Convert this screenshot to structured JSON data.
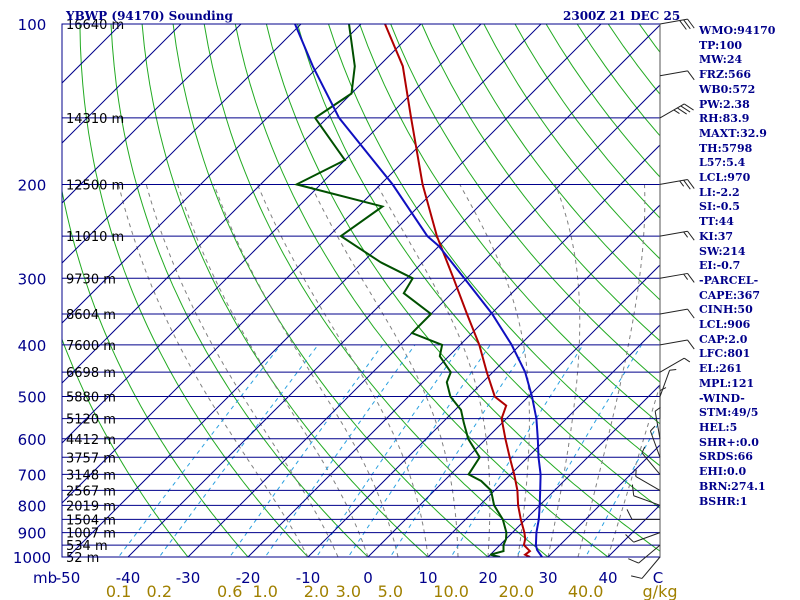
{
  "title_left": "YBWP (94170) Sounding",
  "title_right": "2300Z 21 DEC 25",
  "stats": [
    "WMO:94170",
    "TP:100",
    "MW:24",
    "FRZ:566",
    "WB0:572",
    "PW:2.38",
    "RH:83.9",
    "MAXT:32.9",
    "TH:5798",
    "L57:5.4",
    "LCL:970",
    "LI:-2.2",
    "SI:-0.5",
    "TT:44",
    "KI:37",
    "SW:214",
    "EI:-0.7",
    "-PARCEL-",
    "CAPE:367",
    "CINH:50",
    "LCL:906",
    "CAP:2.0",
    "LFC:801",
    "EL:261",
    "MPL:121",
    "-WIND-",
    "STM:49/5",
    "HEL:5",
    "SHR+:0.0",
    "SRDS:66",
    "EHI:0.0",
    "BRN:274.1",
    "BSHR:1"
  ],
  "colors": {
    "isobar": "#00008b",
    "isotherm": "#00008b",
    "dry_adiabat": "#22aa22",
    "moist_adiabat": "#808080",
    "mixing_ratio": "#2aa0e0",
    "temperature": "#b00000",
    "dewpoint": "#005000",
    "parcel": "#1010c0",
    "ticks": "#555555"
  },
  "chart_data": {
    "type": "skew-t",
    "title": "YBWP (94170) Sounding",
    "ylabel": "mb",
    "xlabel": "C",
    "ylim": [
      1000,
      100
    ],
    "xlim": [
      -50,
      50
    ],
    "pressure_levels": [
      {
        "p": 100,
        "label": "100",
        "height": "16640 m"
      },
      {
        "p": 150,
        "label": "",
        "height": "14310 m"
      },
      {
        "p": 200,
        "label": "200",
        "height": "12500 m"
      },
      {
        "p": 250,
        "label": "",
        "height": "11010 m"
      },
      {
        "p": 300,
        "label": "300",
        "height": "9730 m"
      },
      {
        "p": 350,
        "label": "",
        "height": "8604 m"
      },
      {
        "p": 400,
        "label": "400",
        "height": "7600 m"
      },
      {
        "p": 450,
        "label": "",
        "height": "6698 m"
      },
      {
        "p": 500,
        "label": "500",
        "height": "5880 m"
      },
      {
        "p": 550,
        "label": "",
        "height": "5120 m"
      },
      {
        "p": 600,
        "label": "600",
        "height": "4412 m"
      },
      {
        "p": 650,
        "label": "",
        "height": "3757 m"
      },
      {
        "p": 700,
        "label": "700",
        "height": "3148 m"
      },
      {
        "p": 750,
        "label": "",
        "height": "2567 m"
      },
      {
        "p": 800,
        "label": "800",
        "height": "2019 m"
      },
      {
        "p": 850,
        "label": "",
        "height": "1504 m"
      },
      {
        "p": 900,
        "label": "900",
        "height": "1007 m"
      },
      {
        "p": 950,
        "label": "",
        "height": "534 m"
      },
      {
        "p": 1000,
        "label": "1000",
        "height": "52 m"
      }
    ],
    "temperature_ticks": [
      "-50",
      "-40",
      "-30",
      "-20",
      "-10",
      "0",
      "10",
      "20",
      "30",
      "40"
    ],
    "unit_label": "mb",
    "unit_label_c": "C",
    "mixing_ratio_labels": [
      {
        "w": 0.1,
        "label": "0.1"
      },
      {
        "w": 0.2,
        "label": "0.2"
      },
      {
        "w": 0.6,
        "label": "0.6"
      },
      {
        "w": 1.0,
        "label": "1.0"
      },
      {
        "w": 2.0,
        "label": "2.0"
      },
      {
        "w": 3.0,
        "label": "3.0"
      },
      {
        "w": 5.0,
        "label": "5.0"
      },
      {
        "w": 10.0,
        "label": "10.0"
      },
      {
        "w": 20.0,
        "label": "20.0"
      },
      {
        "w": 40.0,
        "label": "40.0"
      }
    ],
    "mixing_unit": "g/kg",
    "series": [
      {
        "name": "temperature",
        "points": [
          {
            "p": 1000,
            "t": 27.0
          },
          {
            "p": 990,
            "t": 25.8
          },
          {
            "p": 975,
            "t": 26.0
          },
          {
            "p": 950,
            "t": 24.0
          },
          {
            "p": 925,
            "t": 23.2
          },
          {
            "p": 900,
            "t": 22.0
          },
          {
            "p": 850,
            "t": 19.2
          },
          {
            "p": 800,
            "t": 16.4
          },
          {
            "p": 750,
            "t": 13.8
          },
          {
            "p": 700,
            "t": 10.6
          },
          {
            "p": 650,
            "t": 7.0
          },
          {
            "p": 600,
            "t": 3.2
          },
          {
            "p": 550,
            "t": -0.8
          },
          {
            "p": 520,
            "t": -2.2
          },
          {
            "p": 500,
            "t": -5.6
          },
          {
            "p": 450,
            "t": -11.0
          },
          {
            "p": 400,
            "t": -16.8
          },
          {
            "p": 350,
            "t": -24.0
          },
          {
            "p": 300,
            "t": -32.2
          },
          {
            "p": 250,
            "t": -42.0
          },
          {
            "p": 200,
            "t": -53.0
          },
          {
            "p": 150,
            "t": -66.0
          },
          {
            "p": 120,
            "t": -76.0
          },
          {
            "p": 100,
            "t": -86.0
          }
        ]
      },
      {
        "name": "dewpoint",
        "points": [
          {
            "p": 1000,
            "t": 22.0
          },
          {
            "p": 990,
            "t": 20.0
          },
          {
            "p": 975,
            "t": 21.6
          },
          {
            "p": 950,
            "t": 20.6
          },
          {
            "p": 925,
            "t": 20.0
          },
          {
            "p": 900,
            "t": 19.0
          },
          {
            "p": 850,
            "t": 16.2
          },
          {
            "p": 800,
            "t": 12.4
          },
          {
            "p": 750,
            "t": 9.4
          },
          {
            "p": 720,
            "t": 6.2
          },
          {
            "p": 700,
            "t": 3.0
          },
          {
            "p": 650,
            "t": 2.0
          },
          {
            "p": 600,
            "t": -3.0
          },
          {
            "p": 560,
            "t": -6.4
          },
          {
            "p": 530,
            "t": -9.0
          },
          {
            "p": 500,
            "t": -13.0
          },
          {
            "p": 470,
            "t": -16.0
          },
          {
            "p": 450,
            "t": -17.0
          },
          {
            "p": 420,
            "t": -21.5
          },
          {
            "p": 400,
            "t": -23.0
          },
          {
            "p": 380,
            "t": -30.0
          },
          {
            "p": 350,
            "t": -30.0
          },
          {
            "p": 320,
            "t": -38.0
          },
          {
            "p": 300,
            "t": -39.0
          },
          {
            "p": 280,
            "t": -47.0
          },
          {
            "p": 250,
            "t": -58.0
          },
          {
            "p": 220,
            "t": -56.0
          },
          {
            "p": 200,
            "t": -74.0
          },
          {
            "p": 180,
            "t": -70.0
          },
          {
            "p": 150,
            "t": -82.0
          },
          {
            "p": 135,
            "t": -80.0
          },
          {
            "p": 120,
            "t": -84.0
          },
          {
            "p": 100,
            "t": -92.0
          }
        ]
      },
      {
        "name": "parcel",
        "points": [
          {
            "p": 1000,
            "t": 29.0
          },
          {
            "p": 970,
            "t": 27.0
          },
          {
            "p": 950,
            "t": 26.0
          },
          {
            "p": 900,
            "t": 24.0
          },
          {
            "p": 850,
            "t": 22.2
          },
          {
            "p": 800,
            "t": 20.0
          },
          {
            "p": 750,
            "t": 17.6
          },
          {
            "p": 700,
            "t": 15.0
          },
          {
            "p": 650,
            "t": 11.8
          },
          {
            "p": 600,
            "t": 8.6
          },
          {
            "p": 550,
            "t": 5.0
          },
          {
            "p": 500,
            "t": 0.6
          },
          {
            "p": 450,
            "t": -4.6
          },
          {
            "p": 400,
            "t": -11.4
          },
          {
            "p": 350,
            "t": -19.8
          },
          {
            "p": 300,
            "t": -30.4
          },
          {
            "p": 261,
            "t": -40.0
          },
          {
            "p": 250,
            "t": -43.6
          },
          {
            "p": 200,
            "t": -58.0
          },
          {
            "p": 150,
            "t": -78.0
          },
          {
            "p": 120,
            "t": -91.0
          },
          {
            "p": 100,
            "t": -101.0
          }
        ]
      }
    ],
    "wind_barbs": [
      {
        "p": 1000,
        "dir": 220,
        "spd": 10
      },
      {
        "p": 950,
        "dir": 230,
        "spd": 10
      },
      {
        "p": 900,
        "dir": 250,
        "spd": 10
      },
      {
        "p": 850,
        "dir": 270,
        "spd": 10
      },
      {
        "p": 800,
        "dir": 290,
        "spd": 10
      },
      {
        "p": 750,
        "dir": 300,
        "spd": 5
      },
      {
        "p": 700,
        "dir": 320,
        "spd": 5
      },
      {
        "p": 650,
        "dir": 340,
        "spd": 5
      },
      {
        "p": 600,
        "dir": 350,
        "spd": 5
      },
      {
        "p": 550,
        "dir": 0,
        "spd": 5
      },
      {
        "p": 500,
        "dir": 20,
        "spd": 5
      },
      {
        "p": 450,
        "dir": 60,
        "spd": 5
      },
      {
        "p": 400,
        "dir": 80,
        "spd": 10
      },
      {
        "p": 350,
        "dir": 80,
        "spd": 10
      },
      {
        "p": 300,
        "dir": 80,
        "spd": 15
      },
      {
        "p": 250,
        "dir": 80,
        "spd": 15
      },
      {
        "p": 200,
        "dir": 80,
        "spd": 25
      },
      {
        "p": 150,
        "dir": 60,
        "spd": 35
      },
      {
        "p": 125,
        "dir": 80,
        "spd": 10
      },
      {
        "p": 100,
        "dir": 80,
        "spd": 30
      }
    ]
  }
}
